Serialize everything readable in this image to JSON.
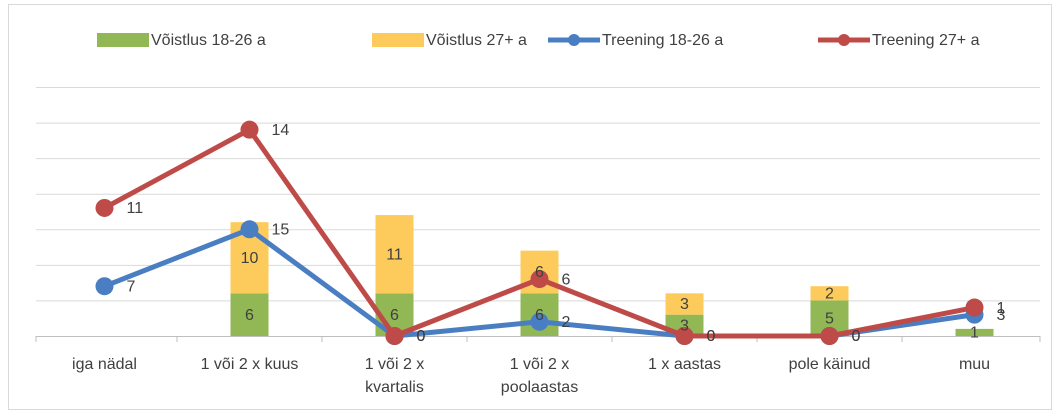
{
  "chart_data": {
    "type": "combo",
    "stacked": true,
    "categories": [
      "iga nädal",
      "1 või 2 x kuus",
      "1 või 2 x\nkvartalis",
      "1 või 2 x\npoolaastas",
      "1 x aastas",
      "pole käinud",
      "muu"
    ],
    "series": [
      {
        "name": "Võistlus 18-26 a",
        "kind": "bar",
        "color": "#92b755",
        "values": [
          null,
          6,
          6,
          6,
          3,
          5,
          1
        ]
      },
      {
        "name": "Võistlus 27+ a",
        "kind": "bar",
        "color": "#fdcb5c",
        "values": [
          null,
          10,
          11,
          6,
          3,
          2,
          null
        ]
      },
      {
        "name": "Treening 18-26 a",
        "kind": "line",
        "color": "#4a7ec2",
        "values": [
          7,
          15,
          0,
          2,
          0,
          0,
          3
        ]
      },
      {
        "name": "Treening 27+ a",
        "kind": "line",
        "color": "#be4b48",
        "values": [
          11,
          14,
          0,
          6,
          0,
          0,
          1
        ]
      }
    ],
    "ylim": [
      0,
      35
    ],
    "yticks": [
      0,
      5,
      10,
      15,
      20,
      25,
      30,
      35
    ],
    "grid": true,
    "legend": "top"
  }
}
